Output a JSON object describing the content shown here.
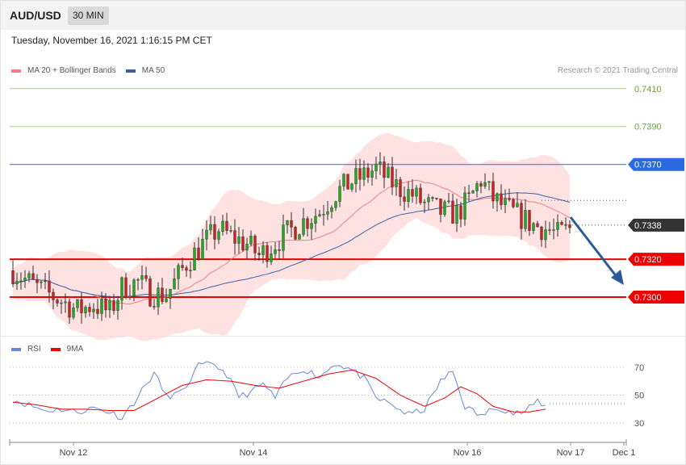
{
  "header": {
    "symbol": "AUD/USD",
    "interval": "30 MIN"
  },
  "datetime": "Tuesday, November 16, 2021 1:16:15 PM CET",
  "credit": "Research © 2021 Trading Central",
  "colors": {
    "ma20": "#f08080",
    "ma50": "#3a5fa5",
    "bollinger": "#fdd8d8",
    "resistance_green": "#66aa33",
    "pivot_blue": "#3366dd",
    "support_red": "#ee0000",
    "bull": "#22aa22",
    "bear": "#cc2222",
    "arrow": "#2b5a9a",
    "rsi": "#6688dd",
    "rsi_ma": "#ee0000"
  },
  "legend_main": [
    {
      "name": "MA 20 + Bollinger Bands",
      "color": "#f08080"
    },
    {
      "name": "MA 50",
      "color": "#3a5fa5"
    }
  ],
  "legend_rsi": [
    {
      "name": "RSI",
      "color": "#6688dd"
    },
    {
      "name": "9MA",
      "color": "#ee0000"
    }
  ],
  "chart_data": {
    "type": "candlestick",
    "y_range": [
      0.728,
      0.7418
    ],
    "x_labels": [
      "Nov 12",
      "Nov 14",
      "Nov 16",
      "Nov 17",
      "Dec 1"
    ],
    "current_price": {
      "label": "0.7338",
      "value": 0.7338
    },
    "levels": [
      {
        "label": "0.7410",
        "value": 0.741,
        "kind": "resistance-green"
      },
      {
        "label": "0.7390",
        "value": 0.739,
        "kind": "resistance-green"
      },
      {
        "label": "0.7370",
        "value": 0.737,
        "kind": "pivot"
      },
      {
        "label": "0.7320",
        "value": 0.732,
        "kind": "support"
      },
      {
        "label": "0.7300",
        "value": 0.73,
        "kind": "support"
      }
    ],
    "price_path": [
      [
        0,
        0.7314
      ],
      [
        6,
        0.7305
      ],
      [
        12,
        0.7298
      ],
      [
        16,
        0.7293
      ],
      [
        20,
        0.7296
      ],
      [
        24,
        0.7292
      ],
      [
        27,
        0.7305
      ],
      [
        31,
        0.7308
      ],
      [
        34,
        0.7302
      ],
      [
        38,
        0.7301
      ],
      [
        43,
        0.7318
      ],
      [
        47,
        0.7328
      ],
      [
        51,
        0.7336
      ],
      [
        54,
        0.7332
      ],
      [
        58,
        0.7328
      ],
      [
        61,
        0.7322
      ],
      [
        64,
        0.7327
      ],
      [
        68,
        0.7334
      ],
      [
        72,
        0.734
      ],
      [
        76,
        0.7345
      ],
      [
        80,
        0.7355
      ],
      [
        84,
        0.7361
      ],
      [
        87,
        0.7364
      ],
      [
        90,
        0.7368
      ],
      [
        93,
        0.7362
      ],
      [
        96,
        0.7357
      ],
      [
        99,
        0.7354
      ],
      [
        102,
        0.7349
      ],
      [
        106,
        0.7345
      ],
      [
        110,
        0.7344
      ],
      [
        113,
        0.7351
      ],
      [
        116,
        0.7362
      ],
      [
        119,
        0.7352
      ],
      [
        122,
        0.7347
      ],
      [
        126,
        0.7342
      ],
      [
        129,
        0.7338
      ],
      [
        132,
        0.7336
      ],
      [
        135,
        0.7333
      ],
      [
        138,
        0.7336
      ]
    ],
    "rsi": {
      "y_range": [
        22,
        78
      ],
      "ticks": [
        {
          "label": "70",
          "value": 70
        },
        {
          "label": "50",
          "value": 50
        },
        {
          "label": "30",
          "value": 30
        }
      ],
      "rsi_path": [
        [
          0,
          47
        ],
        [
          4,
          43
        ],
        [
          8,
          39
        ],
        [
          12,
          40
        ],
        [
          16,
          38
        ],
        [
          20,
          41
        ],
        [
          24,
          38
        ],
        [
          27,
          34
        ],
        [
          30,
          45
        ],
        [
          35,
          66
        ],
        [
          38,
          49
        ],
        [
          42,
          52
        ],
        [
          46,
          71
        ],
        [
          50,
          72
        ],
        [
          53,
          65
        ],
        [
          56,
          49
        ],
        [
          59,
          52
        ],
        [
          62,
          58
        ],
        [
          65,
          48
        ],
        [
          68,
          62
        ],
        [
          72,
          69
        ],
        [
          76,
          63
        ],
        [
          80,
          73
        ],
        [
          84,
          68
        ],
        [
          87,
          62
        ],
        [
          90,
          48
        ],
        [
          94,
          43
        ],
        [
          98,
          36
        ],
        [
          102,
          40
        ],
        [
          106,
          60
        ],
        [
          109,
          67
        ],
        [
          112,
          42
        ],
        [
          116,
          35
        ],
        [
          120,
          42
        ],
        [
          124,
          37
        ],
        [
          127,
          38
        ],
        [
          130,
          46
        ],
        [
          132,
          42
        ]
      ],
      "ma_path": [
        [
          0,
          45
        ],
        [
          6,
          43
        ],
        [
          12,
          40
        ],
        [
          18,
          40
        ],
        [
          24,
          39
        ],
        [
          30,
          39
        ],
        [
          36,
          48
        ],
        [
          42,
          57
        ],
        [
          48,
          61
        ],
        [
          54,
          60
        ],
        [
          60,
          57
        ],
        [
          66,
          55
        ],
        [
          72,
          60
        ],
        [
          78,
          65
        ],
        [
          84,
          68
        ],
        [
          90,
          62
        ],
        [
          96,
          50
        ],
        [
          102,
          42
        ],
        [
          107,
          48
        ],
        [
          111,
          56
        ],
        [
          115,
          51
        ],
        [
          119,
          42
        ],
        [
          124,
          38
        ],
        [
          128,
          38
        ],
        [
          132,
          40
        ]
      ]
    }
  }
}
